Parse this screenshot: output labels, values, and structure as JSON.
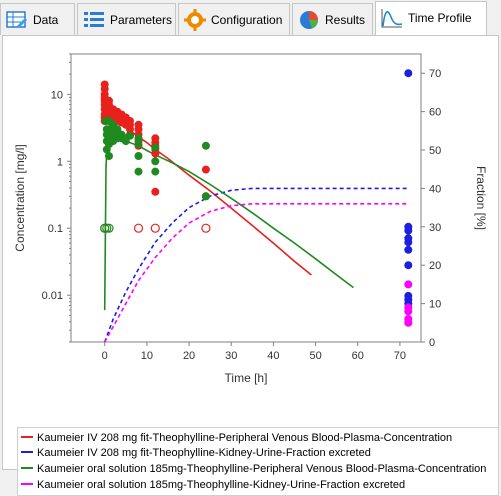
{
  "tabs": [
    {
      "label": "Data",
      "icon": "data-table-icon"
    },
    {
      "label": "Parameters",
      "icon": "parameters-list-icon"
    },
    {
      "label": "Configuration",
      "icon": "gear-icon"
    },
    {
      "label": "Results",
      "icon": "pie-chart-icon"
    },
    {
      "label": "Time Profile",
      "icon": "time-profile-curve-icon",
      "active": true
    }
  ],
  "colors": {
    "red": "#e8211c",
    "blue": "#1e1ee0",
    "green": "#1f8a1f",
    "magenta": "#ff00ff"
  },
  "chart_data": {
    "type": "line",
    "xlabel": "Time [h]",
    "ylabel": "Concentration [mg/l]",
    "y2label": "Fraction [%]",
    "xlim": [
      -8,
      75
    ],
    "ylim": [
      0.002,
      40
    ],
    "yscale": "log",
    "y2lim": [
      0,
      75
    ],
    "xticks": [
      "0",
      "10",
      "20",
      "30",
      "40",
      "50",
      "60",
      "70"
    ],
    "yticks": [
      "0.01",
      "0.1",
      "1",
      "10"
    ],
    "y2ticks": [
      "0",
      "10",
      "20",
      "30",
      "40",
      "50",
      "60",
      "70"
    ],
    "grid": false,
    "legend_position": "bottom",
    "series": [
      {
        "name": "Kaumeier IV 208 mg fit-Theophylline-Peripheral Venous Blood-Plasma-Concentration",
        "color": "red",
        "dash": false,
        "axis": "left",
        "x": [
          0,
          0.5,
          1,
          2,
          3,
          4,
          6,
          8,
          10,
          12,
          15,
          20,
          25,
          30,
          35,
          40,
          45,
          49
        ],
        "y": [
          5.0,
          5.5,
          5.0,
          4.4,
          4.0,
          3.6,
          2.9,
          2.3,
          1.9,
          1.5,
          1.1,
          0.62,
          0.36,
          0.2,
          0.11,
          0.06,
          0.032,
          0.02
        ]
      },
      {
        "name": "Kaumeier IV 208 mg fit-Theophylline-Kidney-Urine-Fraction excreted",
        "color": "blue",
        "dash": true,
        "axis": "right",
        "x": [
          0,
          2,
          5,
          8,
          12,
          16,
          20,
          25,
          30,
          35,
          40,
          50,
          60,
          72
        ],
        "y": [
          0,
          6,
          13,
          19,
          26,
          31,
          35,
          38,
          39.5,
          40,
          40,
          40,
          40,
          40
        ]
      },
      {
        "name": "Kaumeier oral solution 185mg-Theophylline-Peripheral Venous  Blood-Plasma-Concentration",
        "color": "green",
        "dash": false,
        "axis": "left",
        "x": [
          0,
          0.3,
          0.6,
          1,
          2,
          3,
          5,
          8,
          10,
          12,
          16,
          20,
          25,
          30,
          35,
          40,
          45,
          50,
          55,
          59
        ],
        "y": [
          0.006,
          0.8,
          2.0,
          2.4,
          2.5,
          2.3,
          2.0,
          1.7,
          1.45,
          1.25,
          0.95,
          0.7,
          0.45,
          0.28,
          0.17,
          0.1,
          0.06,
          0.035,
          0.02,
          0.013
        ]
      },
      {
        "name": "Kaumeier oral solution 185mg-Theophylline-Kidney-Urine-Fraction excreted",
        "color": "magenta",
        "dash": true,
        "axis": "right",
        "x": [
          0,
          2,
          5,
          8,
          12,
          16,
          20,
          25,
          30,
          35,
          40,
          50,
          60,
          72
        ],
        "y": [
          0,
          4,
          10,
          16,
          22,
          27,
          31,
          34,
          35.5,
          36,
          36,
          36,
          36,
          36
        ]
      }
    ],
    "observed": [
      {
        "color": "red",
        "filled": true,
        "axis": "left",
        "x": [
          0,
          0,
          0,
          0,
          0,
          0,
          0,
          0,
          0,
          0,
          1,
          1,
          1,
          1,
          2,
          2,
          2,
          2,
          3,
          3,
          3,
          4,
          4,
          4,
          5,
          5,
          5,
          6,
          6,
          6,
          6,
          8,
          8,
          8,
          8,
          8,
          12,
          12,
          12,
          12,
          12,
          12,
          24,
          24
        ],
        "y": [
          14,
          12,
          10,
          9,
          8,
          7,
          6,
          5,
          4.5,
          4,
          8,
          7,
          6,
          5,
          6,
          5.5,
          5,
          4,
          5.5,
          5,
          4,
          5,
          4.3,
          3.8,
          4.5,
          4,
          3.5,
          4,
          3.5,
          3,
          2.5,
          3.5,
          3,
          2.5,
          2,
          1.7,
          2.2,
          1.9,
          1.7,
          1.5,
          1.3,
          0.35,
          0.75,
          0.3
        ]
      },
      {
        "color": "red",
        "filled": false,
        "axis": "left",
        "x": [
          0,
          8,
          12,
          24
        ],
        "y": [
          0.1,
          0.1,
          0.1,
          0.1
        ]
      },
      {
        "color": "green",
        "filled": true,
        "axis": "left",
        "x": [
          0.3,
          0.5,
          0.5,
          0.5,
          0.5,
          1,
          1,
          1,
          1,
          1,
          2,
          2,
          2,
          2,
          3,
          3,
          3,
          4,
          4,
          5,
          5,
          6,
          8,
          8,
          8,
          8,
          12,
          12,
          12,
          24,
          24
        ],
        "y": [
          4,
          3,
          2.5,
          2,
          1.5,
          4,
          3,
          2.3,
          1.8,
          1.2,
          3.5,
          3,
          2.5,
          2,
          3,
          2.5,
          2.2,
          2.5,
          2.2,
          2.2,
          2,
          2.4,
          2.2,
          1.8,
          1.2,
          0.7,
          1.6,
          1,
          0.7,
          1.7,
          0.3
        ]
      },
      {
        "color": "green",
        "filled": false,
        "axis": "left",
        "x": [
          0,
          0.5,
          1
        ],
        "y": [
          0.1,
          0.1,
          0.1
        ]
      },
      {
        "color": "blue",
        "filled": true,
        "axis": "right",
        "x": [
          72,
          72,
          72,
          72,
          72,
          72,
          72,
          72,
          72,
          72
        ],
        "y": [
          70,
          30,
          29,
          27,
          26,
          24,
          20,
          12,
          11,
          10
        ]
      },
      {
        "color": "magenta",
        "filled": true,
        "axis": "right",
        "x": [
          72,
          72,
          72,
          72,
          72
        ],
        "y": [
          15,
          9,
          8,
          6,
          5
        ]
      }
    ]
  }
}
